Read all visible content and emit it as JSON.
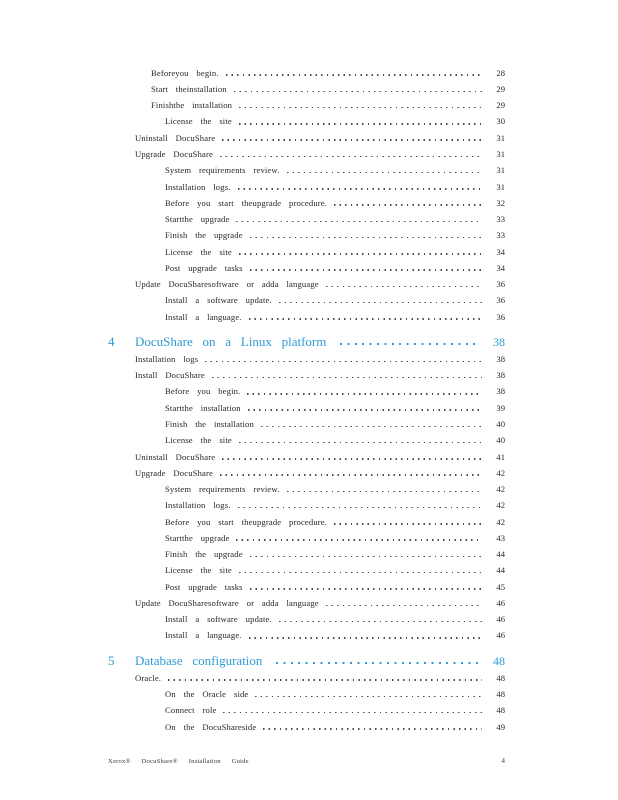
{
  "page": {
    "colors": {
      "accent": "#2f9ad4",
      "body_text": "#262626"
    },
    "footer": {
      "doc_title": "Xerox® DocuShare® Installation Guide",
      "page_number": "4"
    }
  },
  "toc": {
    "sections": [
      {
        "entries": [
          {
            "label": "Beforeyou begin.",
            "page": "28",
            "level": 2
          },
          {
            "label": "Start theinstallation",
            "page": "29",
            "level": 2
          },
          {
            "label": "Finishthe installation",
            "page": "29",
            "level": 2
          },
          {
            "label": "License the site",
            "page": "30",
            "level": 3
          },
          {
            "label": "Uninstall DocuShare",
            "page": "31",
            "level": 1
          },
          {
            "label": "Upgrade DocuShare",
            "page": "31",
            "level": 1
          },
          {
            "label": "System requirements review.",
            "page": "31",
            "level": 3
          },
          {
            "label": "Installation logs.",
            "page": "31",
            "level": 3
          },
          {
            "label": "Before you start theupgrade procedure.",
            "page": "32",
            "level": 3
          },
          {
            "label": "Startthe upgrade",
            "page": "33",
            "level": 3
          },
          {
            "label": "Finish the upgrade",
            "page": "33",
            "level": 3
          },
          {
            "label": "License the site",
            "page": "34",
            "level": 3
          },
          {
            "label": "Post upgrade tasks",
            "page": "34",
            "level": 3
          },
          {
            "label": "Update DocuSharesoftware or adda language",
            "page": "36",
            "level": 1
          },
          {
            "label": "Install a software update.",
            "page": "36",
            "level": 3
          },
          {
            "label": "Install a language.",
            "page": "36",
            "level": 3
          }
        ]
      },
      {
        "number": "4",
        "title": "DocuShare on a Linux platform",
        "page": "38",
        "entries": [
          {
            "label": "Installation logs",
            "page": "38",
            "level": 1
          },
          {
            "label": "Install DocuShare",
            "page": "38",
            "level": 1
          },
          {
            "label": "Before you begin.",
            "page": "38",
            "level": 3
          },
          {
            "label": "Startthe installation",
            "page": "39",
            "level": 3
          },
          {
            "label": "Finish the installation",
            "page": "40",
            "level": 3
          },
          {
            "label": "License the site",
            "page": "40",
            "level": 3
          },
          {
            "label": "Uninstall DocuShare",
            "page": "41",
            "level": 1
          },
          {
            "label": "Upgrade DocuShare",
            "page": "42",
            "level": 1
          },
          {
            "label": "System requirements review.",
            "page": "42",
            "level": 3
          },
          {
            "label": "Installation logs.",
            "page": "42",
            "level": 3
          },
          {
            "label": "Before you start theupgrade procedure.",
            "page": "42",
            "level": 3
          },
          {
            "label": "Startthe upgrade",
            "page": "43",
            "level": 3
          },
          {
            "label": "Finish the upgrade",
            "page": "44",
            "level": 3
          },
          {
            "label": "License the site",
            "page": "44",
            "level": 3
          },
          {
            "label": "Post upgrade tasks",
            "page": "45",
            "level": 3
          },
          {
            "label": "Update DocuSharesoftware or adda language",
            "page": "46",
            "level": 1
          },
          {
            "label": "Install a software update.",
            "page": "46",
            "level": 3
          },
          {
            "label": "Install a language.",
            "page": "46",
            "level": 3
          }
        ]
      },
      {
        "number": "5",
        "title": "Database configuration",
        "page": "48",
        "entries": [
          {
            "label": "Oracle.",
            "page": "48",
            "level": 1
          },
          {
            "label": "On the Oracle side",
            "page": "48",
            "level": 3
          },
          {
            "label": "Connect role",
            "page": "48",
            "level": 3
          },
          {
            "label": "On the DocuShareside",
            "page": "49",
            "level": 3
          }
        ]
      }
    ]
  }
}
